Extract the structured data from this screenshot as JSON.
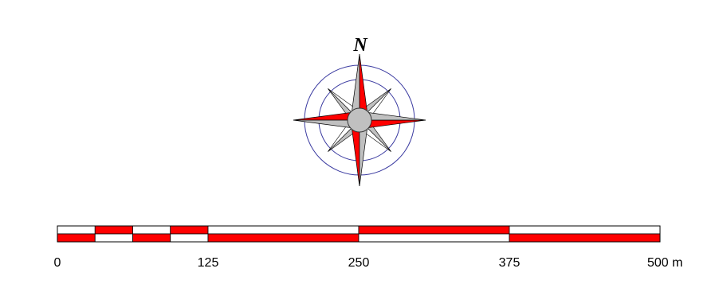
{
  "compass": {
    "north_label": "N",
    "ring_color": "#3a3aa0",
    "accent_color": "#ff0000",
    "secondary_color": "#c0c0c0",
    "outline_color": "#000000"
  },
  "scale_bar": {
    "unit": "m",
    "ticks": [
      {
        "value": 0,
        "label": "0"
      },
      {
        "value": 125,
        "label": "125"
      },
      {
        "value": 250,
        "label": "250"
      },
      {
        "value": 375,
        "label": "375"
      },
      {
        "value": 500,
        "label": "500 m"
      }
    ],
    "segments": [
      {
        "from": 0,
        "to": 31.25,
        "top": "white",
        "bottom": "red"
      },
      {
        "from": 31.25,
        "to": 62.5,
        "top": "red",
        "bottom": "white"
      },
      {
        "from": 62.5,
        "to": 93.75,
        "top": "white",
        "bottom": "red"
      },
      {
        "from": 93.75,
        "to": 125,
        "top": "red",
        "bottom": "white"
      },
      {
        "from": 125,
        "to": 250,
        "top": "white",
        "bottom": "red"
      },
      {
        "from": 250,
        "to": 375,
        "top": "red",
        "bottom": "white"
      },
      {
        "from": 375,
        "to": 500,
        "top": "white",
        "bottom": "red"
      }
    ],
    "colors": {
      "red": "#ff0000",
      "white": "#ffffff",
      "outline": "#000000"
    }
  }
}
